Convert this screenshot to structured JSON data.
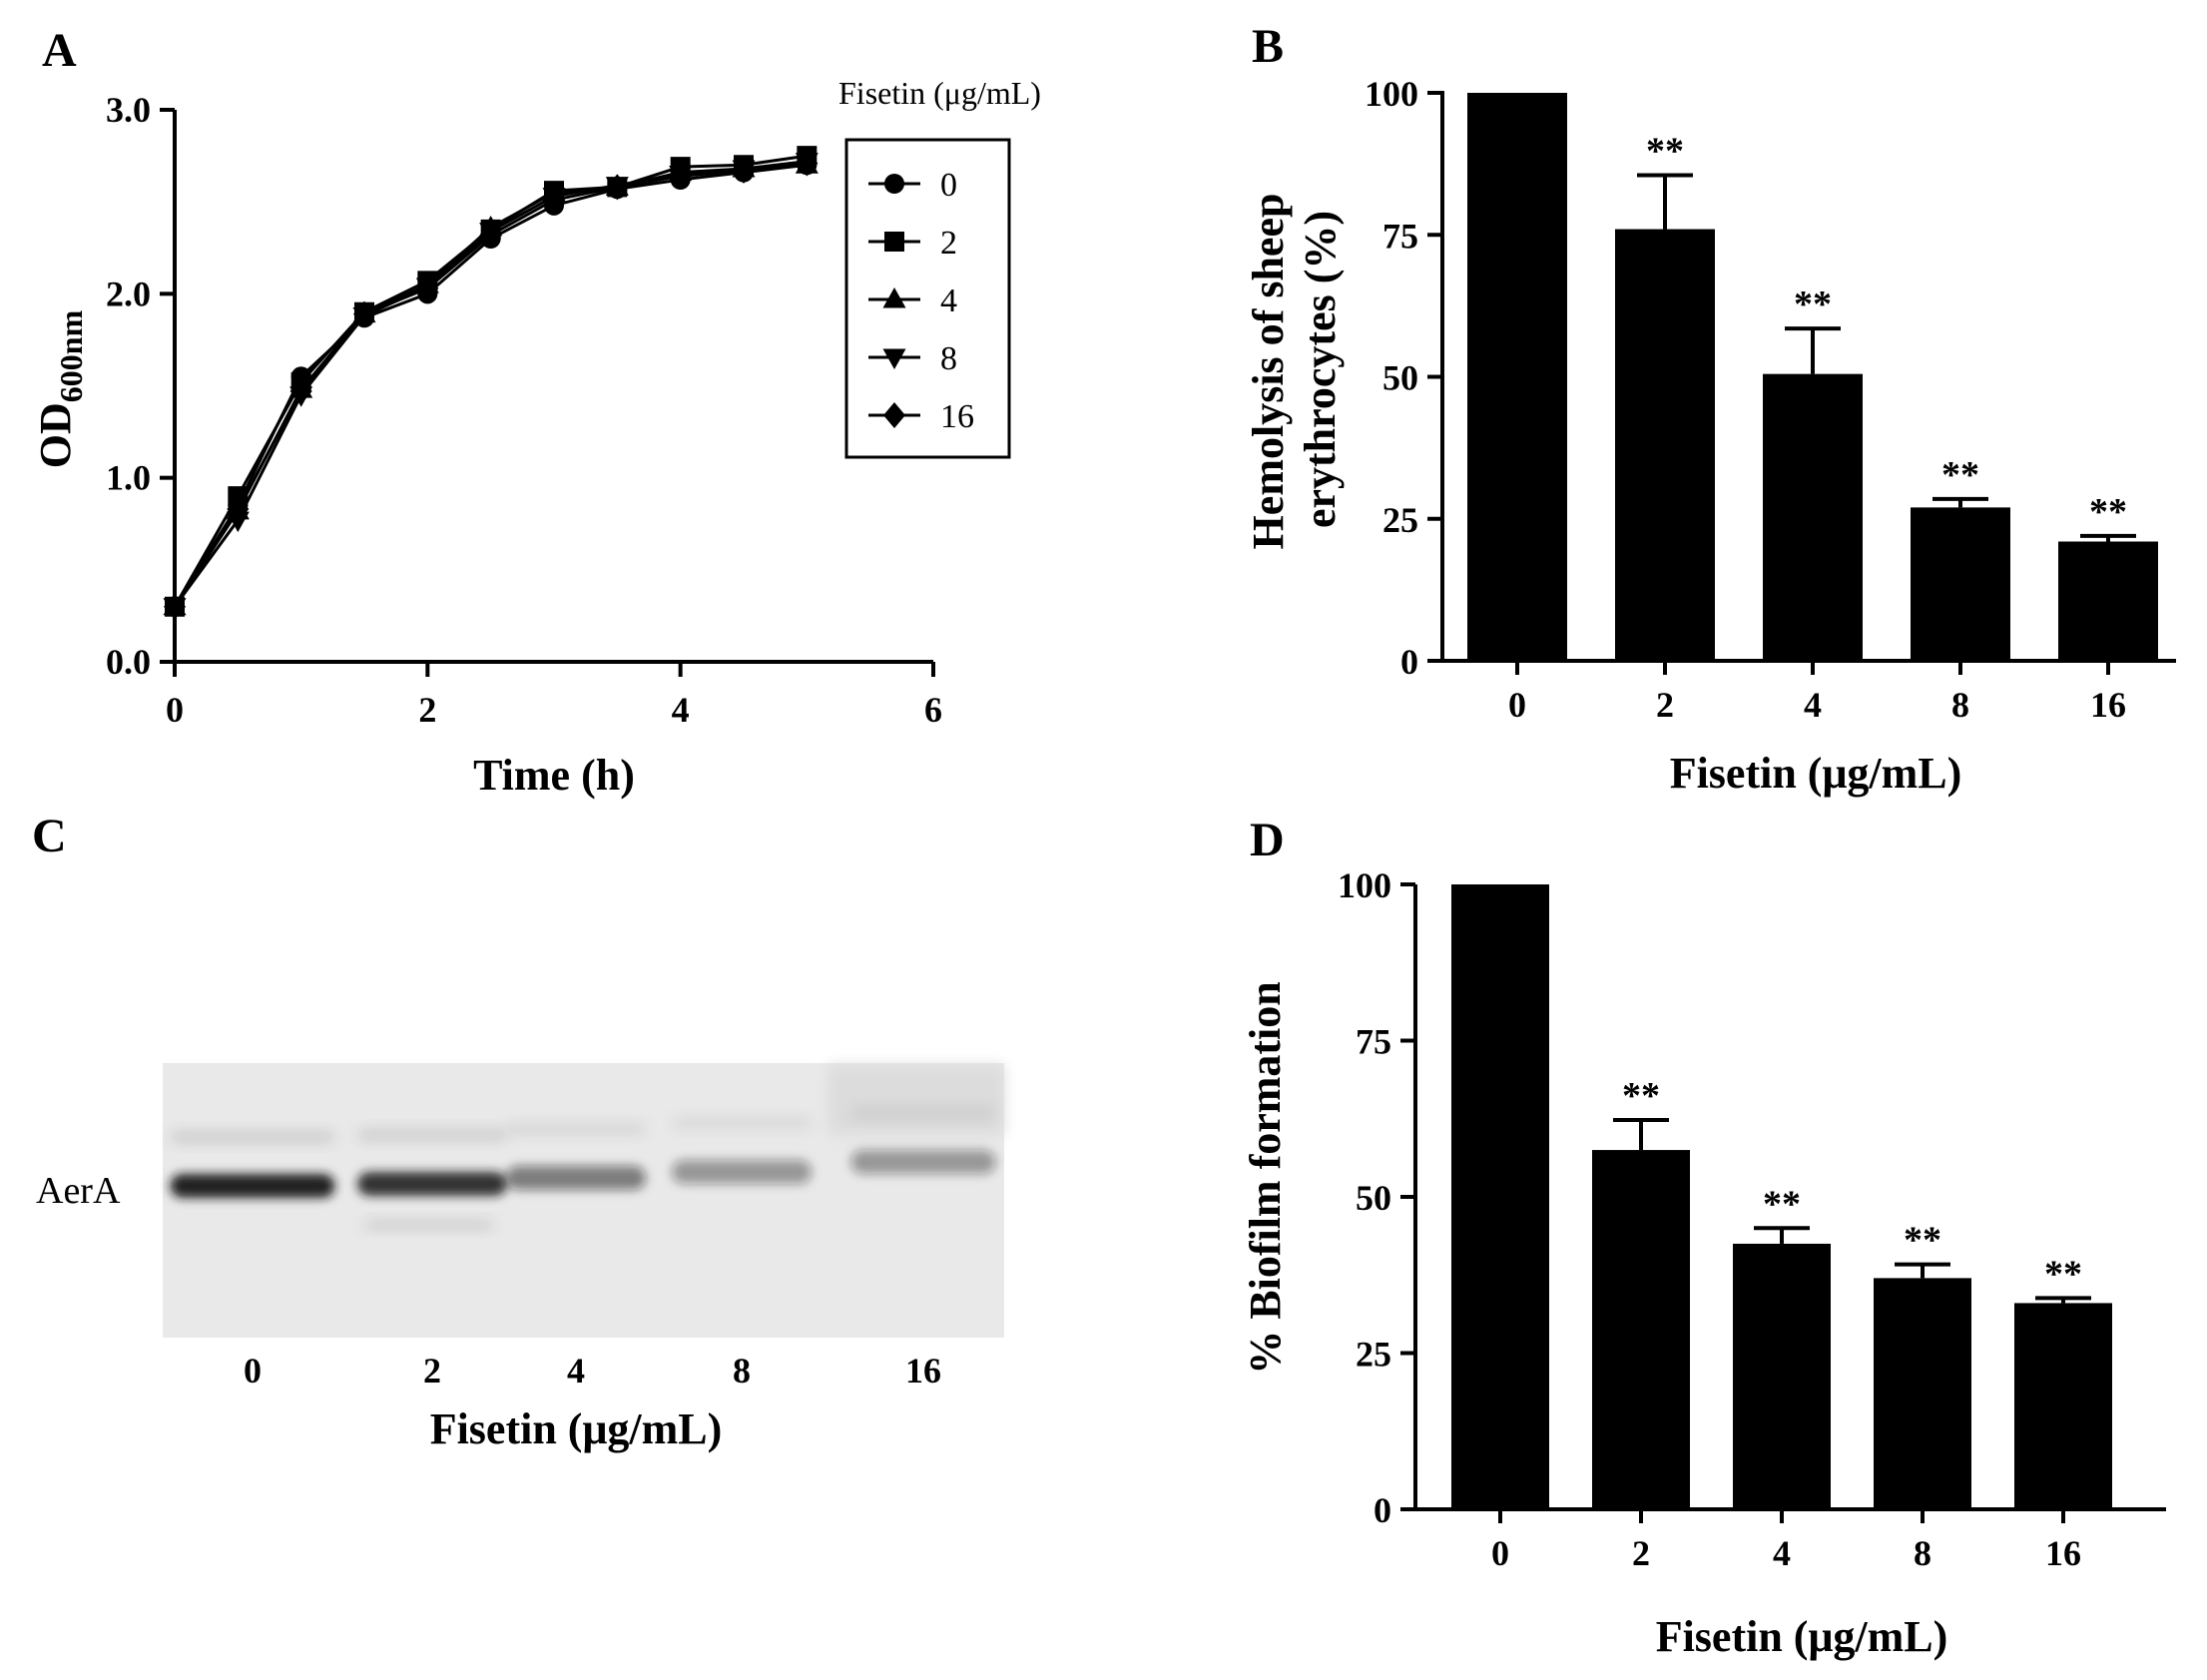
{
  "chart_data": [
    {
      "panel": "A",
      "type": "line",
      "title": "",
      "xlabel": "Time (h)",
      "ylabel": "OD",
      "ylabel_subscript": "600nm",
      "xlim": [
        0,
        6
      ],
      "ylim": [
        0.0,
        3.0
      ],
      "xticks": [
        0,
        2,
        4,
        6
      ],
      "yticks": [
        0.0,
        1.0,
        2.0,
        3.0
      ],
      "ytick_labels": [
        "0.0",
        "1.0",
        "2.0",
        "3.0"
      ],
      "grid": false,
      "legend_title": "Fisetin (μg/mL)",
      "legend_position": "top-right",
      "x": [
        0,
        0.5,
        1,
        1.5,
        2,
        2.5,
        3,
        3.5,
        4,
        4.5,
        5
      ],
      "series": [
        {
          "name": "0",
          "marker": "circle",
          "values": [
            0.3,
            0.85,
            1.55,
            1.87,
            2.0,
            2.3,
            2.48,
            2.57,
            2.62,
            2.66,
            2.7
          ]
        },
        {
          "name": "2",
          "marker": "square",
          "values": [
            0.3,
            0.9,
            1.52,
            1.9,
            2.07,
            2.35,
            2.56,
            2.58,
            2.69,
            2.7,
            2.75
          ]
        },
        {
          "name": "4",
          "marker": "triangle-up",
          "values": [
            0.3,
            0.82,
            1.48,
            1.89,
            2.05,
            2.36,
            2.55,
            2.58,
            2.66,
            2.68,
            2.7
          ]
        },
        {
          "name": "8",
          "marker": "triangle-down",
          "values": [
            0.3,
            0.77,
            1.45,
            1.88,
            2.04,
            2.34,
            2.53,
            2.59,
            2.65,
            2.68,
            2.72
          ]
        },
        {
          "name": "16",
          "marker": "diamond",
          "values": [
            0.3,
            0.83,
            1.47,
            1.89,
            2.03,
            2.32,
            2.51,
            2.58,
            2.64,
            2.67,
            2.71
          ]
        }
      ]
    },
    {
      "panel": "B",
      "type": "bar",
      "title": "",
      "xlabel": "Fisetin (μg/mL)",
      "ylabel_lines": [
        "Hemolysis of sheep",
        "erythrocytes (%)"
      ],
      "categories": [
        "0",
        "2",
        "4",
        "8",
        "16"
      ],
      "values": [
        100,
        76,
        50.5,
        27,
        21
      ],
      "errors": [
        0,
        9.5,
        8,
        1.5,
        1
      ],
      "significance": [
        "",
        "**",
        "**",
        "**",
        "**"
      ],
      "ylim": [
        0,
        100
      ],
      "yticks": [
        0,
        25,
        50,
        75,
        100
      ],
      "grid": false
    },
    {
      "panel": "D",
      "type": "bar",
      "title": "",
      "xlabel": "Fisetin (μg/mL)",
      "ylabel": "% Biofilm formation",
      "categories": [
        "0",
        "2",
        "4",
        "8",
        "16"
      ],
      "values": [
        100,
        57.5,
        42.5,
        37,
        33
      ],
      "errors": [
        0,
        4.8,
        2.5,
        2.2,
        0.8
      ],
      "significance": [
        "",
        "**",
        "**",
        "**",
        "**"
      ],
      "ylim": [
        0,
        100
      ],
      "yticks": [
        0,
        25,
        50,
        75,
        100
      ],
      "grid": false
    }
  ],
  "blot": {
    "panel": "C",
    "row_label": "AerA",
    "lanes": [
      "0",
      "2",
      "4",
      "8",
      "16"
    ],
    "xlabel": "Fisetin (μg/mL)",
    "band_intensity": [
      1.0,
      0.9,
      0.45,
      0.3,
      0.3
    ]
  },
  "colors": {
    "ink": "#000000",
    "bar": "#000000",
    "blot_background": "#e9e9e9",
    "band": "#141414"
  }
}
